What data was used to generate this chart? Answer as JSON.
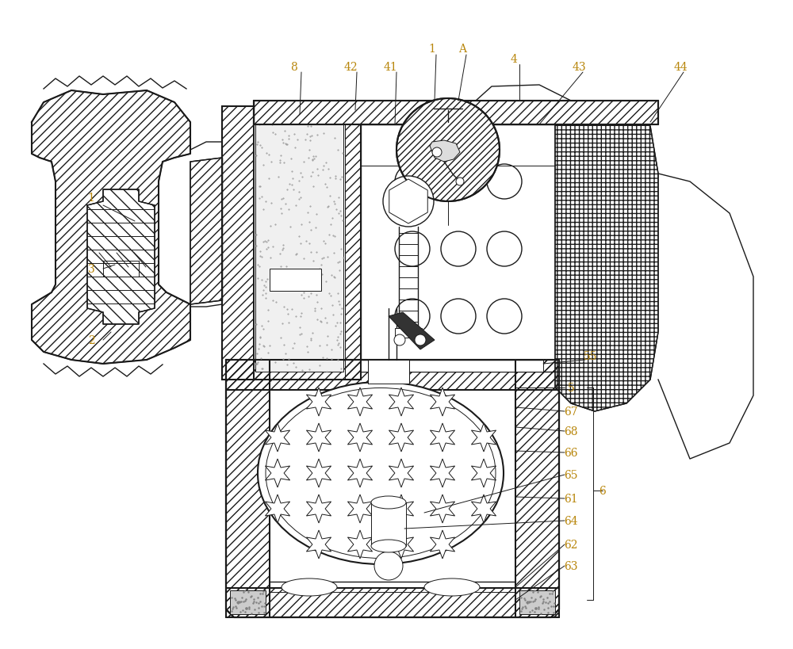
{
  "bg_color": "#ffffff",
  "line_color": "#1a1a1a",
  "label_color": "#b8860b",
  "fig_width": 10,
  "fig_height": 8.2,
  "dpi": 100,
  "lw_thin": 0.7,
  "lw_med": 1.0,
  "lw_thick": 1.5,
  "label_fs": 10
}
